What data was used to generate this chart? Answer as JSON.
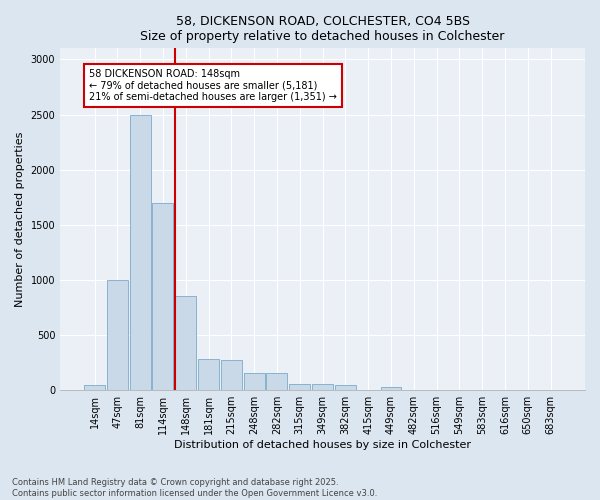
{
  "title1": "58, DICKENSON ROAD, COLCHESTER, CO4 5BS",
  "title2": "Size of property relative to detached houses in Colchester",
  "xlabel": "Distribution of detached houses by size in Colchester",
  "ylabel": "Number of detached properties",
  "bar_labels": [
    "14sqm",
    "47sqm",
    "81sqm",
    "114sqm",
    "148sqm",
    "181sqm",
    "215sqm",
    "248sqm",
    "282sqm",
    "315sqm",
    "349sqm",
    "382sqm",
    "415sqm",
    "449sqm",
    "482sqm",
    "516sqm",
    "549sqm",
    "583sqm",
    "616sqm",
    "650sqm",
    "683sqm"
  ],
  "bar_values": [
    50,
    1000,
    2500,
    1700,
    850,
    280,
    270,
    155,
    155,
    55,
    55,
    50,
    0,
    25,
    0,
    0,
    0,
    0,
    0,
    0,
    0
  ],
  "bar_color": "#c9d9e8",
  "bar_edge_color": "#7aaac8",
  "vline_index": 4,
  "vline_color": "#cc0000",
  "annotation_text": "58 DICKENSON ROAD: 148sqm\n← 79% of detached houses are smaller (5,181)\n21% of semi-detached houses are larger (1,351) →",
  "annotation_box_color": "#ffffff",
  "annotation_box_edge": "#cc0000",
  "ylim": [
    0,
    3100
  ],
  "yticks": [
    0,
    500,
    1000,
    1500,
    2000,
    2500,
    3000
  ],
  "footer": "Contains HM Land Registry data © Crown copyright and database right 2025.\nContains public sector information licensed under the Open Government Licence v3.0.",
  "bg_color": "#dce6f0",
  "plot_bg_color": "#eaf0f6",
  "grid_color": "#ffffff",
  "title_fontsize": 9,
  "axis_label_fontsize": 8,
  "tick_fontsize": 7,
  "annotation_fontsize": 7,
  "footer_fontsize": 6
}
